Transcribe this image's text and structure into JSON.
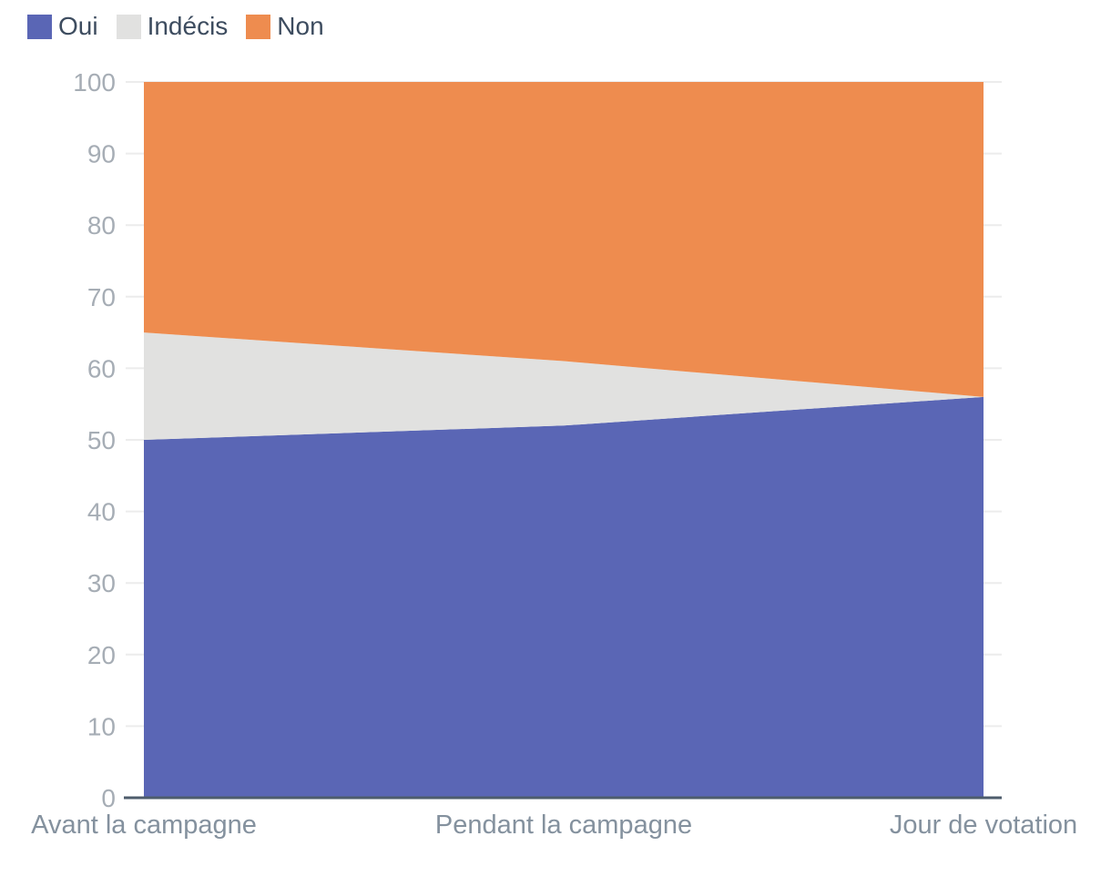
{
  "chart_data": {
    "type": "area",
    "stacked": true,
    "title": "",
    "categories": [
      "Avant la campagne",
      "Pendant la campagne",
      "Jour de votation"
    ],
    "series": [
      {
        "name": "Oui",
        "color": "#5a66b5",
        "values": [
          50,
          52,
          56
        ]
      },
      {
        "name": "Indécis",
        "color": "#e1e1e0",
        "values": [
          15,
          9,
          0
        ]
      },
      {
        "name": "Non",
        "color": "#ee8c4f",
        "values": [
          35,
          39,
          44
        ]
      }
    ],
    "ylim": [
      0,
      100
    ],
    "y_ticks": [
      0,
      10,
      20,
      30,
      40,
      50,
      60,
      70,
      80,
      90,
      100
    ],
    "xlabel": "",
    "ylabel": "",
    "grid": "horizontal",
    "legend_position": "top-left"
  },
  "colors": {
    "background": "#ffffff",
    "grid_line": "#ececec",
    "axis_line": "#4e5d6c",
    "y_tick_label": "#a6adb5",
    "x_axis_label": "#84919e",
    "legend_text": "#3d4c5f"
  }
}
